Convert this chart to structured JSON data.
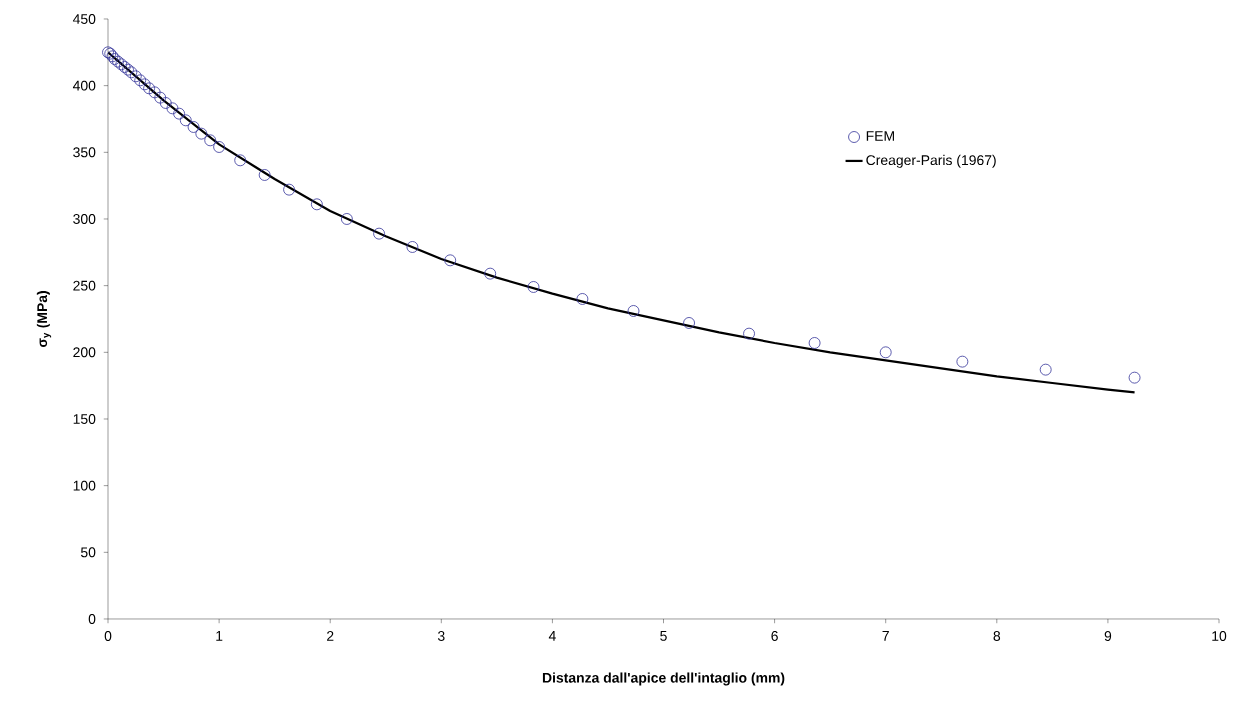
{
  "chart_data": {
    "type": "scatter",
    "xlabel": "Distanza dall'apice dell'intaglio (mm)",
    "ylabel": "σ$_{y}$ (MPa)",
    "xlim": [
      0,
      10
    ],
    "ylim": [
      0,
      450
    ],
    "xticks": [
      0,
      1,
      2,
      3,
      4,
      5,
      6,
      7,
      8,
      9,
      10
    ],
    "yticks": [
      0,
      50,
      100,
      150,
      200,
      250,
      300,
      350,
      400,
      450
    ],
    "grid": false,
    "legend": "right",
    "series": [
      {
        "name": "FEM",
        "marker": "circle",
        "color": "#333399",
        "x": [
          0,
          0.02,
          0.04,
          0.06,
          0.09,
          0.12,
          0.15,
          0.18,
          0.21,
          0.25,
          0.29,
          0.33,
          0.37,
          0.42,
          0.47,
          0.52,
          0.58,
          0.64,
          0.7,
          0.77,
          0.84,
          0.92,
          1.0,
          1.19,
          1.41,
          1.63,
          1.88,
          2.15,
          2.44,
          2.74,
          3.08,
          3.44,
          3.83,
          4.27,
          4.73,
          5.23,
          5.77,
          6.36,
          7.0,
          7.69,
          8.44,
          9.24
        ],
        "values": [
          425,
          424,
          422,
          420,
          418,
          416,
          414,
          412,
          410,
          407,
          404,
          401,
          398,
          395,
          391,
          387,
          383,
          379,
          374,
          369,
          364,
          359,
          354,
          344,
          333,
          322,
          311,
          300,
          289,
          279,
          269,
          259,
          249,
          240,
          231,
          222,
          214,
          207,
          200,
          193,
          187,
          181
        ]
      },
      {
        "name": "Creager-Paris (1967)",
        "type": "line",
        "marker": "none",
        "line_style": "solid",
        "color": "#000000",
        "x": [
          0,
          0.5,
          1,
          1.5,
          2,
          2.5,
          3,
          3.5,
          4,
          4.5,
          5,
          5.5,
          6,
          6.5,
          7,
          7.5,
          8,
          8.5,
          9,
          9.24
        ],
        "values": [
          425,
          389,
          356,
          330,
          306,
          287,
          270,
          256,
          244,
          233,
          224,
          215,
          207,
          200,
          194,
          188,
          182,
          177,
          172,
          170
        ]
      }
    ]
  }
}
